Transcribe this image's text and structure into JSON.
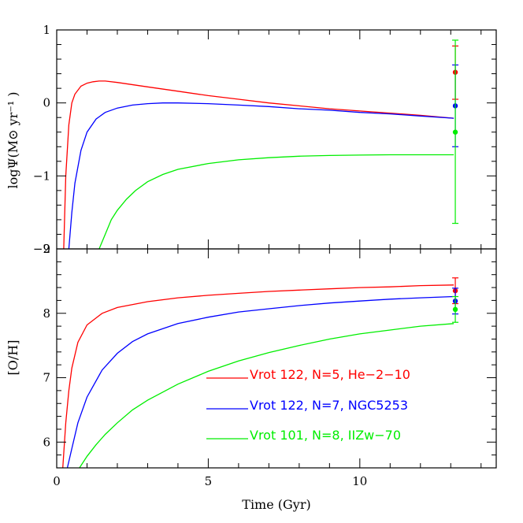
{
  "chart_data": [
    {
      "type": "line",
      "panel": "top",
      "ylabel": "logΨ(M⊙ yr⁻¹ )",
      "xlim": [
        0,
        14.5
      ],
      "ylim": [
        -2,
        1
      ],
      "yticks": [
        {
          "v": -2,
          "label": "−2"
        },
        {
          "v": -1,
          "label": "−1"
        },
        {
          "v": 0,
          "label": "0"
        },
        {
          "v": 1,
          "label": "1"
        }
      ],
      "series": [
        {
          "color": "#ff0000",
          "x": [
            0.23,
            0.3,
            0.4,
            0.5,
            0.6,
            0.8,
            1.0,
            1.2,
            1.4,
            1.6,
            2,
            3,
            4,
            5,
            6,
            7,
            8,
            9,
            10,
            11,
            12,
            13.1
          ],
          "y": [
            -2.0,
            -1.0,
            -0.3,
            0.0,
            0.12,
            0.23,
            0.27,
            0.29,
            0.3,
            0.3,
            0.28,
            0.22,
            0.16,
            0.1,
            0.05,
            0.0,
            -0.04,
            -0.08,
            -0.11,
            -0.14,
            -0.17,
            -0.21
          ]
        },
        {
          "color": "#0000ff",
          "x": [
            0.4,
            0.5,
            0.6,
            0.8,
            1.0,
            1.3,
            1.6,
            2,
            2.5,
            3,
            3.5,
            4,
            5,
            6,
            7,
            8,
            9,
            10,
            11,
            12,
            13.1
          ],
          "y": [
            -2.0,
            -1.5,
            -1.1,
            -0.65,
            -0.4,
            -0.22,
            -0.13,
            -0.07,
            -0.03,
            -0.01,
            0.0,
            0.0,
            -0.01,
            -0.03,
            -0.05,
            -0.08,
            -0.1,
            -0.13,
            -0.15,
            -0.18,
            -0.21
          ]
        },
        {
          "color": "#00ee00",
          "x": [
            1.4,
            1.6,
            1.8,
            2,
            2.3,
            2.6,
            3,
            3.5,
            4,
            5,
            6,
            7,
            8,
            9,
            10,
            11,
            12,
            13.1
          ],
          "y": [
            -2.0,
            -1.8,
            -1.6,
            -1.47,
            -1.32,
            -1.2,
            -1.08,
            -0.98,
            -0.91,
            -0.83,
            -0.78,
            -0.75,
            -0.73,
            -0.72,
            -0.715,
            -0.71,
            -0.71,
            -0.71
          ]
        }
      ],
      "points": [
        {
          "color": "#ff0000",
          "x": 13.15,
          "y": 0.42,
          "ylo": 0.05,
          "yhi": 0.78
        },
        {
          "color": "#0000ff",
          "x": 13.15,
          "y": -0.04,
          "ylo": -0.6,
          "yhi": 0.52
        },
        {
          "color": "#00ee00",
          "x": 13.15,
          "y": -0.4,
          "ylo": -1.65,
          "yhi": 0.86
        }
      ]
    },
    {
      "type": "line",
      "panel": "bottom",
      "xlabel": "Time (Gyr)",
      "ylabel": "[O/H]",
      "xlim": [
        0,
        14.5
      ],
      "ylim": [
        5.6,
        9.0
      ],
      "xticks": [
        {
          "v": 0,
          "label": "0"
        },
        {
          "v": 5,
          "label": "5"
        },
        {
          "v": 10,
          "label": "10"
        }
      ],
      "yticks": [
        {
          "v": 6,
          "label": "6"
        },
        {
          "v": 7,
          "label": "7"
        },
        {
          "v": 8,
          "label": "8"
        },
        {
          "v": 9,
          "label": "9"
        }
      ],
      "series": [
        {
          "color": "#ff0000",
          "name": "Vrot 122, N=5, He−2−10",
          "x": [
            0.2,
            0.3,
            0.4,
            0.5,
            0.7,
            1.0,
            1.5,
            2,
            3,
            4,
            5,
            6,
            7,
            8,
            9,
            10,
            11,
            12,
            13.1
          ],
          "y": [
            5.6,
            6.3,
            6.8,
            7.15,
            7.55,
            7.82,
            8.0,
            8.09,
            8.18,
            8.24,
            8.28,
            8.31,
            8.34,
            8.36,
            8.38,
            8.4,
            8.41,
            8.43,
            8.44
          ]
        },
        {
          "color": "#0000ff",
          "name": "Vrot 122, N=7, NGC5253",
          "x": [
            0.35,
            0.5,
            0.7,
            1.0,
            1.5,
            2,
            2.5,
            3,
            4,
            5,
            6,
            7,
            8,
            9,
            10,
            11,
            12,
            13.1
          ],
          "y": [
            5.6,
            5.9,
            6.3,
            6.7,
            7.12,
            7.38,
            7.56,
            7.68,
            7.84,
            7.94,
            8.02,
            8.07,
            8.12,
            8.16,
            8.19,
            8.22,
            8.24,
            8.26
          ]
        },
        {
          "color": "#00ee00",
          "name": "Vrot 101, N=8, IIZw−70",
          "x": [
            0.75,
            1.0,
            1.3,
            1.6,
            2,
            2.5,
            3,
            4,
            5,
            6,
            7,
            8,
            9,
            10,
            11,
            12,
            13.1
          ],
          "y": [
            5.6,
            5.78,
            5.96,
            6.12,
            6.3,
            6.5,
            6.65,
            6.9,
            7.1,
            7.26,
            7.39,
            7.5,
            7.6,
            7.68,
            7.74,
            7.8,
            7.84
          ]
        }
      ],
      "points": [
        {
          "color": "#ff0000",
          "x": 13.15,
          "y": 8.35,
          "ylo": 8.15,
          "yhi": 8.55
        },
        {
          "color": "#0000ff",
          "x": 13.15,
          "y": 8.19,
          "ylo": 7.99,
          "yhi": 8.39
        },
        {
          "color": "#00ee00",
          "x": 13.15,
          "y": 8.06,
          "ylo": 7.86,
          "yhi": 8.26
        }
      ]
    }
  ]
}
